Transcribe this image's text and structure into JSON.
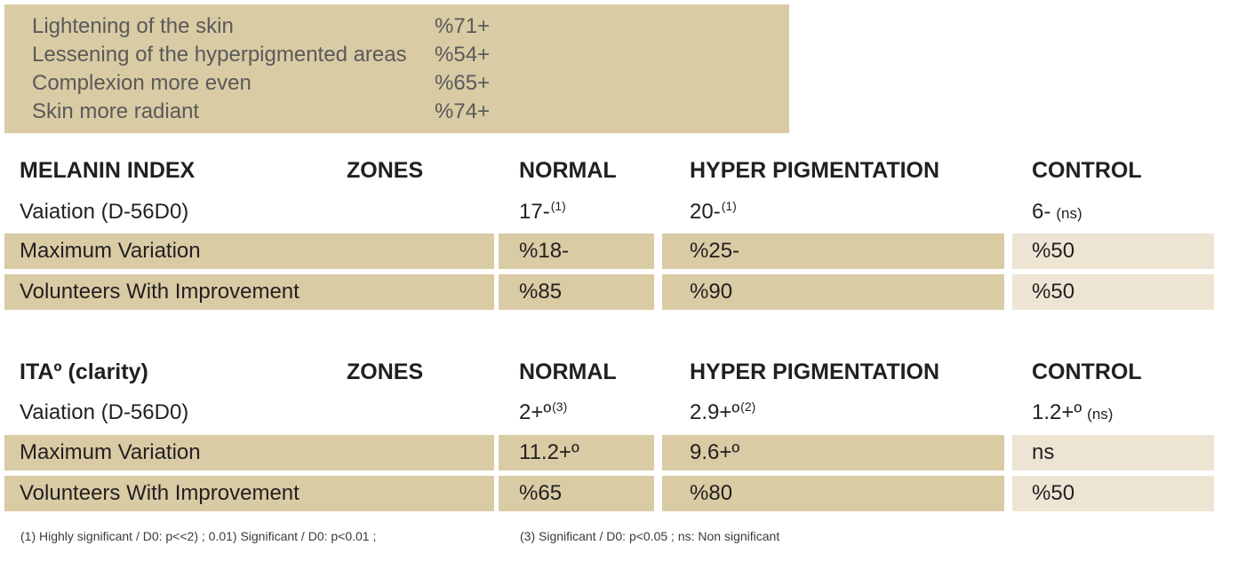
{
  "results": [
    {
      "label": "Lightening of the skin",
      "value": "%71+"
    },
    {
      "label": "Lessening of the hyperpigmented areas",
      "value": "%54+"
    },
    {
      "label": "Complexion more even",
      "value": "%65+"
    },
    {
      "label": "Skin more radiant",
      "value": "%74+"
    }
  ],
  "melanin": {
    "headers": {
      "title": "MELANIN INDEX",
      "zones": "ZONES",
      "normal": "NORMAL",
      "hyper": "HYPER PIGMENTATION",
      "control": "CONTROL"
    },
    "rows": [
      {
        "label": "Vaiation (D-56D0)",
        "normal": "17-",
        "normal_note": "(1)",
        "hyper": "20-",
        "hyper_note": "(1)",
        "control": "6-",
        "control_note": "(ns)"
      },
      {
        "label": "Maximum Variation",
        "normal": "%18-",
        "hyper": "%25-",
        "control": "%50"
      },
      {
        "label": "Volunteers With Improvement",
        "normal": "%85",
        "hyper": "%90",
        "control": "%50"
      }
    ]
  },
  "ita": {
    "headers": {
      "title": "ITAº (clarity)",
      "zones": "ZONES",
      "normal": "NORMAL",
      "hyper": "HYPER PIGMENTATION",
      "control": "CONTROL"
    },
    "rows": [
      {
        "label": "Vaiation (D-56D0)",
        "normal": "2+º",
        "normal_note": "(3)",
        "hyper": "2.9+º",
        "hyper_note": "(2)",
        "control": "1.2+º",
        "control_note": "(ns)"
      },
      {
        "label": "Maximum Variation",
        "normal": "11.2+º",
        "hyper": "9.6+º",
        "control": "ns"
      },
      {
        "label": "Volunteers With Improvement",
        "normal": "%65",
        "hyper": "%80",
        "control": "%50"
      }
    ]
  },
  "footnotes": {
    "left": "(1) Highly significant / D0: p<<2) ; 0.01) Significant / D0: p<0.01 ;",
    "right": "(3) Significant / D0: p<0.05 ; ns: Non significant"
  }
}
